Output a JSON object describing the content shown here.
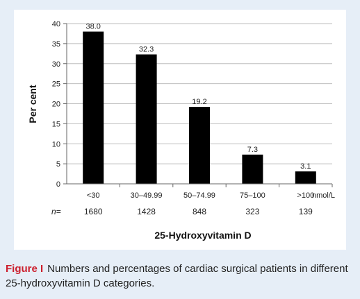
{
  "caption": {
    "label": "Figure I",
    "text": "Numbers and percentages of cardiac surgical patients in different 25-hydroxyvitamin D categories."
  },
  "colors": {
    "panel_background": "#e6eef7",
    "bar": "#000000",
    "caption_label": "#cc1f2d",
    "grid": "#bdbdbd"
  },
  "chart_data": {
    "type": "bar",
    "title": "",
    "xlabel": "25-Hydroxyvitamin D",
    "ylabel": "Per cent",
    "x_unit": "nmol/L",
    "categories": [
      "<30",
      "30–49.99",
      "50–74.99",
      "75–100",
      ">100"
    ],
    "values": [
      38.0,
      32.3,
      19.2,
      7.3,
      3.1
    ],
    "data_labels": [
      "38.0",
      "32.3",
      "19.2",
      "7.3",
      "3.1"
    ],
    "n_label": "n=",
    "n_values": [
      "1680",
      "1428",
      "848",
      "323",
      "139"
    ],
    "ylim": [
      0,
      40
    ],
    "yticks": [
      0,
      5,
      10,
      15,
      20,
      25,
      30,
      35,
      40
    ],
    "grid": true,
    "legend": "none"
  }
}
